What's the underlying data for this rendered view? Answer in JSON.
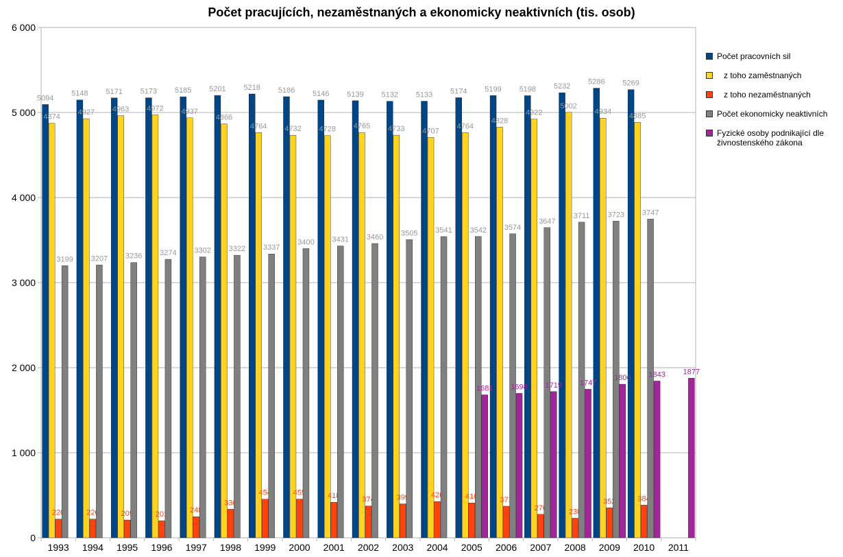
{
  "chart_data": {
    "type": "bar",
    "title": "Počet pracujících, nezaměstnaných a ekonomicky neaktivních (tis. osob)",
    "xlabel": "",
    "ylabel": "",
    "ylim": [
      0,
      6000
    ],
    "y_ticks": [
      "0",
      "1 000",
      "2 000",
      "3 000",
      "4 000",
      "5 000",
      "6 000"
    ],
    "grid": true,
    "legend_position": "right",
    "categories": [
      "1993",
      "1994",
      "1995",
      "1996",
      "1997",
      "1998",
      "1999",
      "2000",
      "2001",
      "2002",
      "2003",
      "2004",
      "2005",
      "2006",
      "2007",
      "2008",
      "2009",
      "2010",
      "2011"
    ],
    "series": [
      {
        "name": "Počet pracovních sil",
        "color": "#004586",
        "label_color": "#999999",
        "values": [
          5094,
          5148,
          5171,
          5173,
          5185,
          5201,
          5218,
          5186,
          5146,
          5139,
          5132,
          5133,
          5174,
          5199,
          5198,
          5232,
          5286,
          5269,
          null
        ]
      },
      {
        "name": "z toho zaměstnaných",
        "color": "#ffd320",
        "label_color": "#999999",
        "values": [
          4874,
          4927,
          4963,
          4972,
          4937,
          4866,
          4764,
          4732,
          4728,
          4765,
          4733,
          4707,
          4764,
          4828,
          4922,
          5002,
          4934,
          4885,
          null
        ]
      },
      {
        "name": "z toho nezaměstnaných",
        "color": "#ff420e",
        "label_color": "#ff420e",
        "values": [
          220,
          220,
          209,
          201,
          248,
          336,
          454,
          455,
          418,
          374,
          399,
          426,
          410,
          371,
          276,
          230,
          352,
          384,
          null
        ]
      },
      {
        "name": "Počet ekonomicky neaktivních",
        "color": "#808080",
        "label_color": "#999999",
        "values": [
          3199,
          3207,
          3236,
          3274,
          3302,
          3322,
          3337,
          3400,
          3431,
          3460,
          3505,
          3541,
          3542,
          3574,
          3647,
          3711,
          3723,
          3747,
          null
        ]
      },
      {
        "name": "Fyzické osoby podnikající dle živnostenského zákona",
        "color": "#a0269a",
        "label_color": "#a0269a",
        "values": [
          null,
          null,
          null,
          null,
          null,
          null,
          null,
          null,
          null,
          null,
          null,
          null,
          1681,
          1698,
          1719,
          1747,
          1806,
          1843,
          1877
        ]
      }
    ]
  },
  "legend": {
    "items": [
      {
        "label": "Počet pracovních sil",
        "color": "#004586"
      },
      {
        "label": "   z toho zaměstnaných",
        "color": "#ffd320"
      },
      {
        "label": "   z toho nezaměstnaných",
        "color": "#ff420e"
      },
      {
        "label": "Počet ekonomicky neaktivních",
        "color": "#808080"
      },
      {
        "label": "Fyzické osoby podnikající dle živnostenského zákona",
        "color": "#a0269a"
      }
    ]
  }
}
